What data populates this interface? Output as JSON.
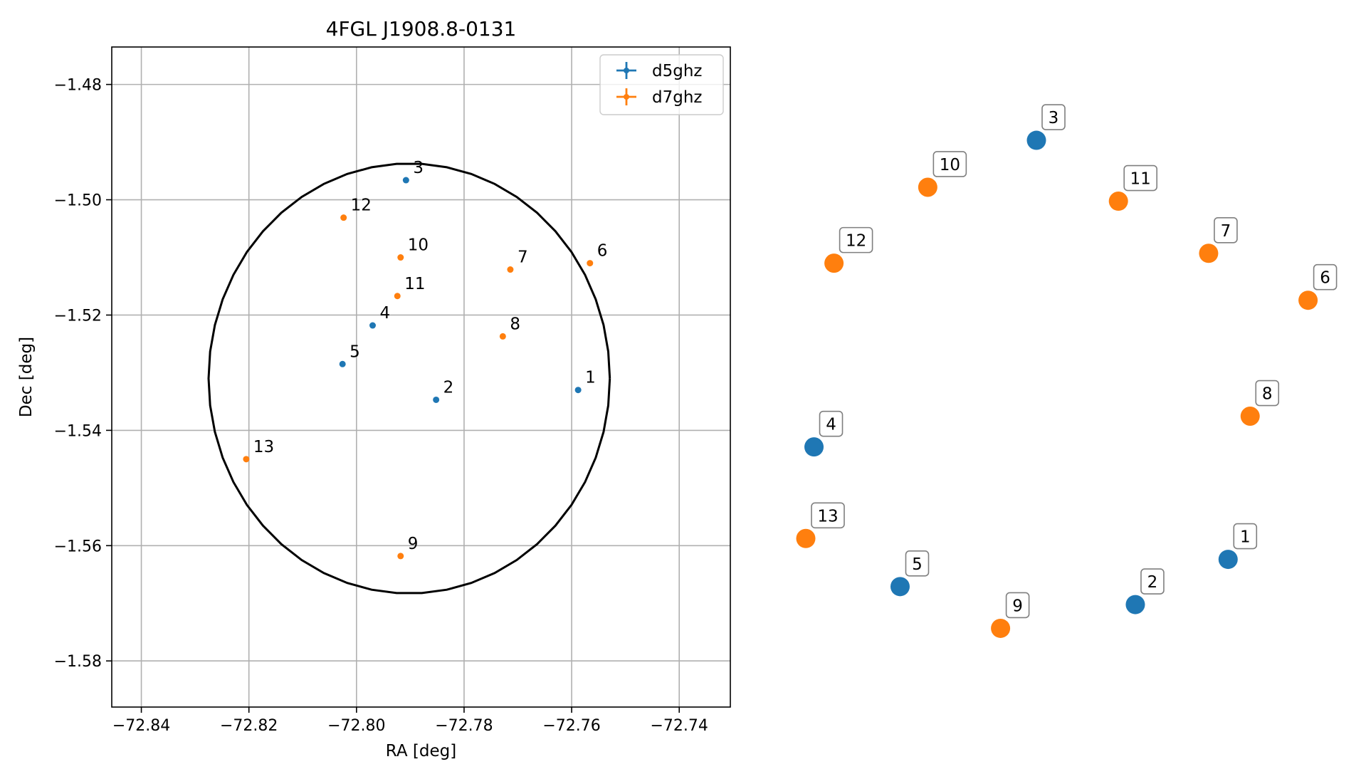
{
  "chart_data": [
    {
      "type": "scatter",
      "title": "4FGL J1908.8-0131",
      "xlabel": "RA [deg]",
      "ylabel": "Dec [deg]",
      "xlim": [
        -72.8455,
        -72.7305
      ],
      "ylim": [
        -1.588,
        -1.4735
      ],
      "xticks": [
        -72.84,
        -72.82,
        -72.8,
        -72.78,
        -72.76,
        -72.74
      ],
      "xtick_labels": [
        "−72.84",
        "−72.82",
        "−72.80",
        "−72.78",
        "−72.76",
        "−72.74"
      ],
      "yticks": [
        -1.48,
        -1.5,
        -1.52,
        -1.54,
        -1.56,
        -1.58
      ],
      "ytick_labels": [
        "−1.48",
        "−1.50",
        "−1.52",
        "−1.54",
        "−1.56",
        "−1.58"
      ],
      "grid": true,
      "legend_position": "top-right",
      "circle": {
        "center": [
          -72.7902,
          -1.531
        ],
        "radius": 0.0373,
        "color": "#000000"
      },
      "series": [
        {
          "name": "d5ghz",
          "color": "#1f77b4",
          "points": [
            {
              "label": "1",
              "x": -72.7588,
              "y": -1.533
            },
            {
              "label": "2",
              "x": -72.7852,
              "y": -1.5347
            },
            {
              "label": "3",
              "x": -72.7908,
              "y": -1.4966
            },
            {
              "label": "4",
              "x": -72.797,
              "y": -1.5218
            },
            {
              "label": "5",
              "x": -72.8026,
              "y": -1.5285
            }
          ]
        },
        {
          "name": "d7ghz",
          "color": "#ff7f0e",
          "points": [
            {
              "label": "6",
              "x": -72.7566,
              "y": -1.511
            },
            {
              "label": "7",
              "x": -72.7714,
              "y": -1.5121
            },
            {
              "label": "8",
              "x": -72.7728,
              "y": -1.5237
            },
            {
              "label": "9",
              "x": -72.7918,
              "y": -1.5618
            },
            {
              "label": "10",
              "x": -72.7918,
              "y": -1.51
            },
            {
              "label": "11",
              "x": -72.7924,
              "y": -1.5167
            },
            {
              "label": "12",
              "x": -72.8024,
              "y": -1.5031
            },
            {
              "label": "13",
              "x": -72.8205,
              "y": -1.545
            }
          ]
        }
      ]
    },
    {
      "type": "scatter",
      "title": "",
      "axes_visible": false,
      "xlim": [
        0,
        100
      ],
      "ylim": [
        0,
        100
      ],
      "points": [
        {
          "label": "1",
          "series": "d5ghz",
          "x": 82.4,
          "y": 20.2
        },
        {
          "label": "2",
          "series": "d5ghz",
          "x": 64.3,
          "y": 12.4
        },
        {
          "label": "3",
          "series": "d5ghz",
          "x": 45.0,
          "y": 92.5
        },
        {
          "label": "4",
          "series": "d5ghz",
          "x": 1.6,
          "y": 39.6
        },
        {
          "label": "5",
          "series": "d5ghz",
          "x": 18.4,
          "y": 15.5
        },
        {
          "label": "6",
          "series": "d7ghz",
          "x": 98.0,
          "y": 64.9
        },
        {
          "label": "7",
          "series": "d7ghz",
          "x": 78.6,
          "y": 73.0
        },
        {
          "label": "8",
          "series": "d7ghz",
          "x": 86.7,
          "y": 44.9
        },
        {
          "label": "9",
          "series": "d7ghz",
          "x": 38.0,
          "y": 8.3
        },
        {
          "label": "10",
          "series": "d7ghz",
          "x": 23.8,
          "y": 84.4
        },
        {
          "label": "11",
          "series": "d7ghz",
          "x": 61.0,
          "y": 82.0
        },
        {
          "label": "12",
          "series": "d7ghz",
          "x": 5.5,
          "y": 71.3
        },
        {
          "label": "13",
          "series": "d7ghz",
          "x": 0.0,
          "y": 23.8
        }
      ],
      "colors": {
        "d5ghz": "#1f77b4",
        "d7ghz": "#ff7f0e"
      }
    }
  ]
}
